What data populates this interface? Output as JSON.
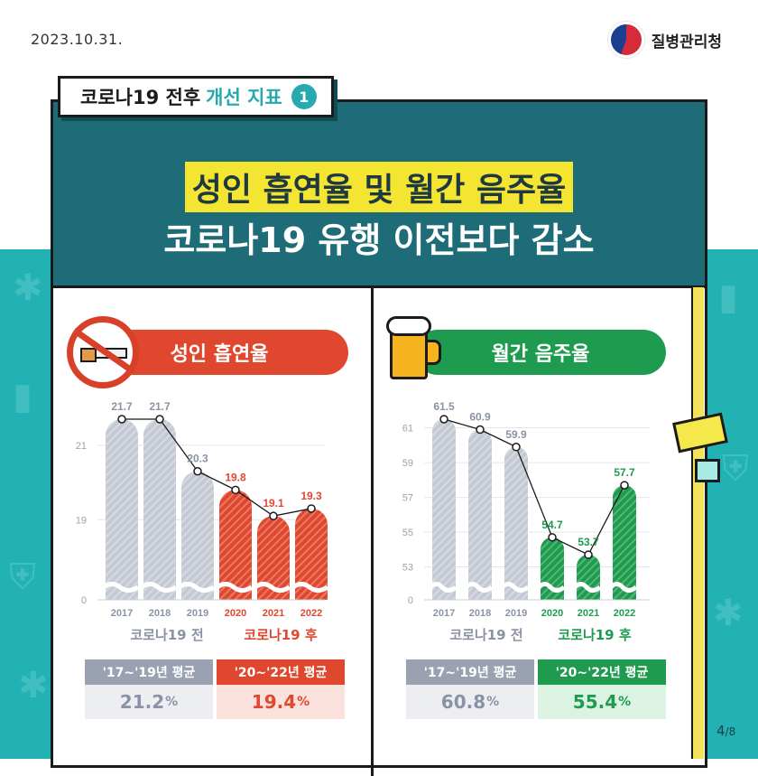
{
  "date": "2023.10.31.",
  "agency": "질병관리청",
  "tag": {
    "part1": "코로나19 전후",
    "part2": "개선 지표",
    "number": "1"
  },
  "title": {
    "line1": "성인 흡연율 및 월간 음주율",
    "line2": "코로나19 유행 이전보다 감소"
  },
  "colors": {
    "header": "#1e6c77",
    "highlight": "#f3e531",
    "smoke": "#e0472f",
    "drink": "#1f9b4f",
    "pre": "#c4c9d4",
    "teal": "#22b2b3"
  },
  "smoking": {
    "heading": "성인 흡연율",
    "icon": "no-smoking-icon",
    "pre_label": "코로나19 전",
    "post_label": "코로나19 후",
    "avg_pre_label": "'17~'19년 평균",
    "avg_pre_value": "21.2",
    "avg_post_label": "'20~'22년 평균",
    "avg_post_value": "19.4",
    "pct": "%"
  },
  "drinking": {
    "heading": "월간 음주율",
    "icon": "beer-mug-icon",
    "pre_label": "코로나19 전",
    "post_label": "코로나19 후",
    "avg_pre_label": "'17~'19년 평균",
    "avg_pre_value": "60.8",
    "avg_post_label": "'20~'22년 평균",
    "avg_post_value": "55.4",
    "pct": "%"
  },
  "page": {
    "current": "4",
    "total": "/8"
  },
  "chart_data": [
    {
      "type": "bar",
      "categories": [
        "2017",
        "2018",
        "2019",
        "2020",
        "2021",
        "2022"
      ],
      "values": [
        21.7,
        21.7,
        20.3,
        19.8,
        19.1,
        19.3
      ],
      "value_labels": [
        "21.7",
        "21.7",
        "20.3",
        "19.8",
        "19.1",
        "19.3"
      ],
      "yticks": [
        "0",
        "19",
        "21"
      ],
      "broken_axis": true,
      "overlay_line": true,
      "groups": [
        "pre",
        "pre",
        "pre",
        "post",
        "post",
        "post"
      ]
    },
    {
      "type": "bar",
      "categories": [
        "2017",
        "2018",
        "2019",
        "2020",
        "2021",
        "2022"
      ],
      "values": [
        61.5,
        60.9,
        59.9,
        54.7,
        53.7,
        57.7
      ],
      "value_labels": [
        "61.5",
        "60.9",
        "59.9",
        "54.7",
        "53.7",
        "57.7"
      ],
      "yticks": [
        "0",
        "53",
        "55",
        "57",
        "59",
        "61"
      ],
      "broken_axis": true,
      "overlay_line": true,
      "groups": [
        "pre",
        "pre",
        "pre",
        "post",
        "post",
        "post"
      ]
    }
  ]
}
